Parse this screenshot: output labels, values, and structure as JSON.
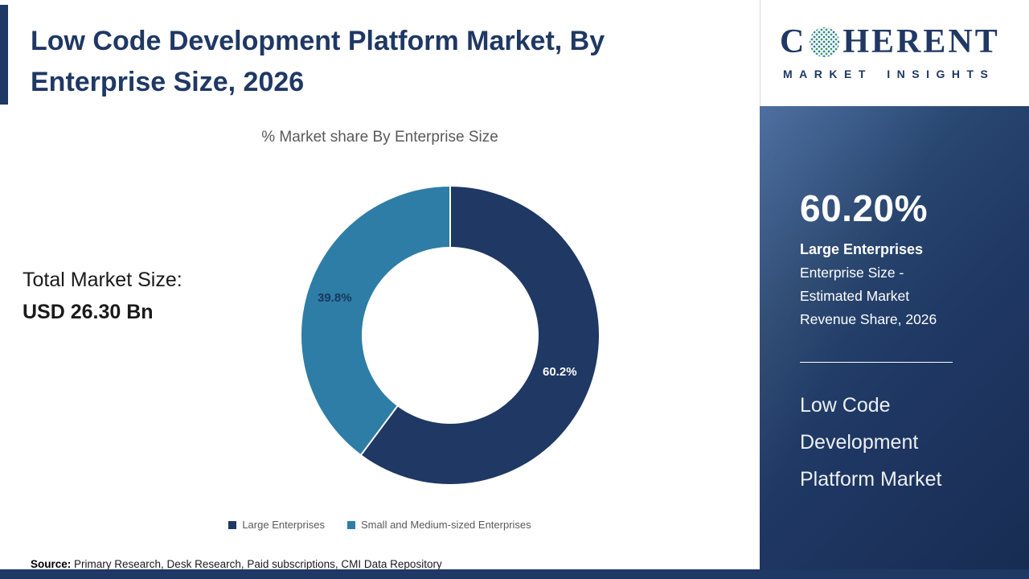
{
  "page": {
    "title": "Low Code Development Platform Market, By Enterprise Size, 2026"
  },
  "logo": {
    "prefix": "C",
    "suffix": "HERENT",
    "tagline": "MARKET INSIGHTS"
  },
  "chart_data": {
    "type": "pie",
    "donut": true,
    "title": "% Market share By Enterprise Size",
    "categories": [
      "Large Enterprises",
      "Small and Medium-sized Enterprises"
    ],
    "values": [
      60.2,
      39.8
    ],
    "slice_labels": [
      "60.2%",
      "39.8%"
    ],
    "colors": [
      "#1f3864",
      "#2e7da6"
    ],
    "start_angle_deg": 0,
    "direction": "clockwise",
    "legend_position": "bottom"
  },
  "market_size": {
    "label": "Total Market Size:",
    "value": "USD 26.30 Bn"
  },
  "highlight": {
    "value": "60.20%",
    "segment": "Large Enterprises",
    "description": "Enterprise Size - Estimated Market Revenue Share, 2026",
    "market": "Low Code Development Platform Market"
  },
  "source": {
    "label": "Source:",
    "text": "Primary Research, Desk Research, Paid subscriptions, CMI Data Repository"
  }
}
